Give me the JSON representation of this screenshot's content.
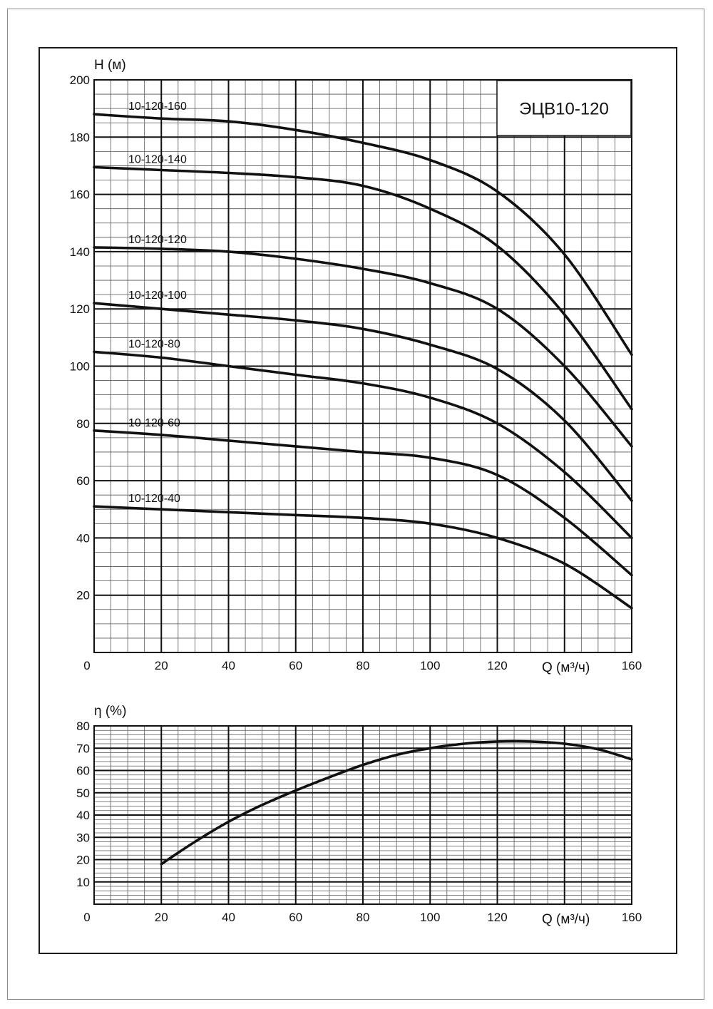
{
  "chart_data": [
    {
      "type": "line",
      "title": "ЭЦВ10-120",
      "xlabel": "Q (м³/ч)",
      "ylabel": "H (м)",
      "xlim": [
        0,
        160
      ],
      "ylim": [
        0,
        200
      ],
      "x_ticks": [
        0,
        20,
        40,
        60,
        80,
        100,
        120,
        160
      ],
      "y_ticks": [
        20,
        40,
        60,
        80,
        100,
        120,
        140,
        160,
        180,
        200
      ],
      "grid": true,
      "series": [
        {
          "name": "10-120-160",
          "x": [
            0,
            20,
            40,
            60,
            80,
            100,
            120,
            140,
            160
          ],
          "y": [
            188,
            186.5,
            185.5,
            182.5,
            178,
            172,
            161,
            139,
            104
          ]
        },
        {
          "name": "10-120-140",
          "x": [
            0,
            20,
            40,
            60,
            80,
            100,
            120,
            140,
            160
          ],
          "y": [
            169.5,
            168.5,
            167.5,
            166,
            163,
            155,
            142,
            118,
            85
          ]
        },
        {
          "name": "10-120-120",
          "x": [
            0,
            20,
            40,
            60,
            80,
            100,
            120,
            140,
            160
          ],
          "y": [
            141.5,
            141,
            140,
            137.5,
            134,
            129,
            120,
            100,
            72
          ]
        },
        {
          "name": "10-120-100",
          "x": [
            0,
            20,
            40,
            60,
            80,
            100,
            120,
            140,
            160
          ],
          "y": [
            122,
            120,
            118,
            116,
            113,
            107.5,
            99,
            81,
            53
          ]
        },
        {
          "name": "10-120-80",
          "x": [
            0,
            20,
            40,
            60,
            80,
            100,
            120,
            140,
            160
          ],
          "y": [
            105,
            103,
            100,
            97,
            94,
            89,
            80,
            63,
            40
          ]
        },
        {
          "name": "10-120-60",
          "x": [
            0,
            20,
            40,
            60,
            80,
            100,
            120,
            140,
            160
          ],
          "y": [
            77.5,
            76,
            74,
            72,
            70,
            68,
            62,
            47,
            27
          ]
        },
        {
          "name": "10-120-40",
          "x": [
            0,
            20,
            40,
            60,
            80,
            100,
            120,
            140,
            160
          ],
          "y": [
            51,
            50,
            49,
            48,
            47,
            45,
            40,
            31,
            15.5
          ]
        }
      ]
    },
    {
      "type": "line",
      "title": "",
      "xlabel": "Q (м³/ч)",
      "ylabel": "η (%)",
      "xlim": [
        0,
        160
      ],
      "ylim": [
        0,
        80
      ],
      "x_ticks": [
        0,
        20,
        40,
        60,
        80,
        100,
        120,
        160
      ],
      "y_ticks": [
        10,
        20,
        30,
        40,
        50,
        60,
        70,
        80
      ],
      "grid": true,
      "series": [
        {
          "x": [
            20,
            30,
            40,
            50,
            60,
            70,
            80,
            90,
            100,
            110,
            120,
            130,
            140,
            150,
            160
          ],
          "y": [
            18,
            28,
            37,
            44.5,
            51,
            57,
            62.5,
            67,
            70,
            72,
            73,
            73,
            72,
            69.5,
            65
          ]
        }
      ]
    }
  ]
}
